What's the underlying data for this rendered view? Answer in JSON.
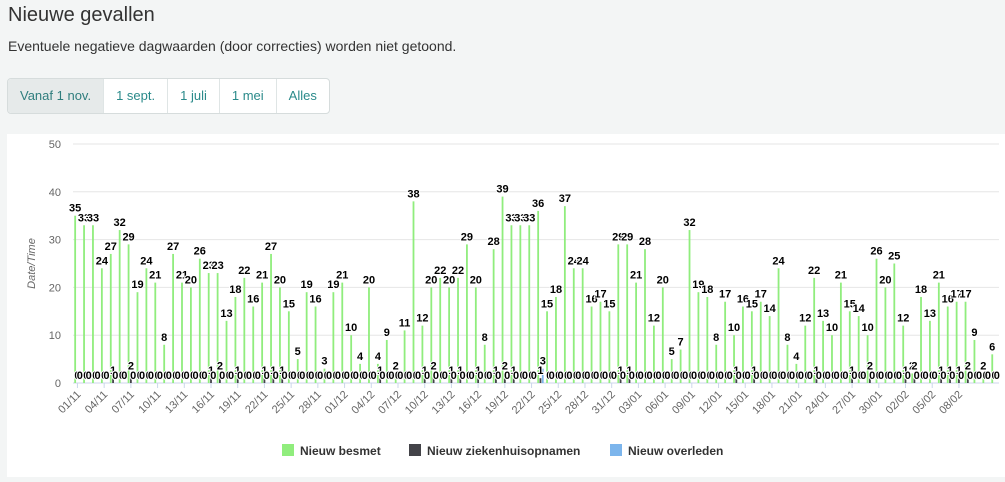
{
  "header": {
    "title": "Nieuwe gevallen",
    "subtitle": "Eventuele negatieve dagwaarden (door correcties) worden niet getoond."
  },
  "tabs": [
    {
      "label": "Vanaf 1 nov.",
      "active": true
    },
    {
      "label": "1 sept.",
      "active": false
    },
    {
      "label": "1 juli",
      "active": false
    },
    {
      "label": "1 mei",
      "active": false
    },
    {
      "label": "Alles",
      "active": false
    }
  ],
  "chart_data": {
    "type": "bar",
    "xlabel": "",
    "ylabel": "Date/Time",
    "ylim": [
      0,
      50
    ],
    "yticks": [
      0,
      10,
      20,
      30,
      40,
      50
    ],
    "grid": true,
    "legend_position": "bottom",
    "xticks": [
      "01/11",
      "04/11",
      "07/11",
      "10/11",
      "13/11",
      "16/11",
      "19/11",
      "22/11",
      "25/11",
      "28/11",
      "01/12",
      "04/12",
      "07/12",
      "10/12",
      "13/12",
      "16/12",
      "19/12",
      "22/12",
      "25/12",
      "28/12",
      "31/12",
      "03/01",
      "06/01",
      "09/01",
      "12/01",
      "15/01",
      "18/01",
      "21/01",
      "24/01",
      "27/01",
      "30/01",
      "02/02",
      "05/02",
      "08/02"
    ],
    "series": [
      {
        "name": "Nieuw besmet",
        "color": "#90ed7d",
        "values": [
          35,
          33,
          33,
          24,
          27,
          32,
          29,
          19,
          24,
          21,
          8,
          27,
          21,
          20,
          26,
          23,
          23,
          13,
          18,
          22,
          16,
          21,
          27,
          20,
          15,
          5,
          19,
          16,
          3,
          19,
          21,
          10,
          4,
          20,
          4,
          9,
          2,
          11,
          38,
          12,
          20,
          22,
          20,
          22,
          29,
          20,
          8,
          28,
          39,
          33,
          33,
          33,
          36,
          15,
          18,
          37,
          24,
          24,
          16,
          17,
          15,
          29,
          29,
          21,
          28,
          12,
          20,
          5,
          7,
          32,
          19,
          18,
          8,
          17,
          10,
          16,
          15,
          17,
          14,
          24,
          8,
          4,
          12,
          22,
          13,
          10,
          21,
          15,
          14,
          10,
          26,
          20,
          25,
          12,
          2,
          18,
          13,
          21,
          16,
          17,
          17,
          9,
          2,
          6
        ]
      },
      {
        "name": "Nieuw ziekenhuisopnamen",
        "color": "#434348",
        "values": [
          0,
          0,
          0,
          0,
          1,
          0,
          2,
          0,
          0,
          0,
          0,
          0,
          0,
          0,
          0,
          1,
          2,
          0,
          1,
          0,
          0,
          1,
          1,
          1,
          0,
          0,
          0,
          0,
          0,
          0,
          0,
          0,
          0,
          0,
          1,
          0,
          0,
          0,
          0,
          1,
          2,
          0,
          1,
          1,
          0,
          1,
          0,
          1,
          2,
          1,
          0,
          0,
          1,
          0,
          0,
          0,
          0,
          0,
          0,
          0,
          0,
          1,
          1,
          0,
          0,
          0,
          0,
          0,
          0,
          0,
          0,
          0,
          0,
          0,
          1,
          0,
          1,
          0,
          0,
          0,
          0,
          0,
          0,
          1,
          0,
          0,
          0,
          1,
          0,
          2,
          0,
          0,
          0,
          1,
          2,
          0,
          0,
          1,
          1,
          1,
          2,
          0,
          0,
          0
        ]
      },
      {
        "name": "Nieuw overleden",
        "color": "#7cb5ec",
        "values": [
          0,
          0,
          0,
          0,
          0,
          0,
          0,
          0,
          0,
          0,
          0,
          0,
          0,
          0,
          0,
          0,
          0,
          0,
          0,
          0,
          0,
          0,
          0,
          0,
          0,
          0,
          0,
          0,
          0,
          0,
          0,
          0,
          0,
          0,
          0,
          0,
          0,
          0,
          0,
          0,
          0,
          0,
          0,
          0,
          0,
          0,
          0,
          0,
          0,
          0,
          0,
          0,
          3,
          0,
          0,
          0,
          0,
          0,
          0,
          0,
          0,
          0,
          0,
          0,
          0,
          0,
          0,
          0,
          0,
          0,
          0,
          0,
          0,
          0,
          0,
          0,
          0,
          0,
          0,
          0,
          0,
          0,
          0,
          0,
          0,
          0,
          0,
          0,
          0,
          0,
          0,
          0,
          0,
          0,
          0,
          0,
          0,
          0,
          0,
          0,
          0,
          0,
          0,
          0
        ]
      }
    ]
  }
}
